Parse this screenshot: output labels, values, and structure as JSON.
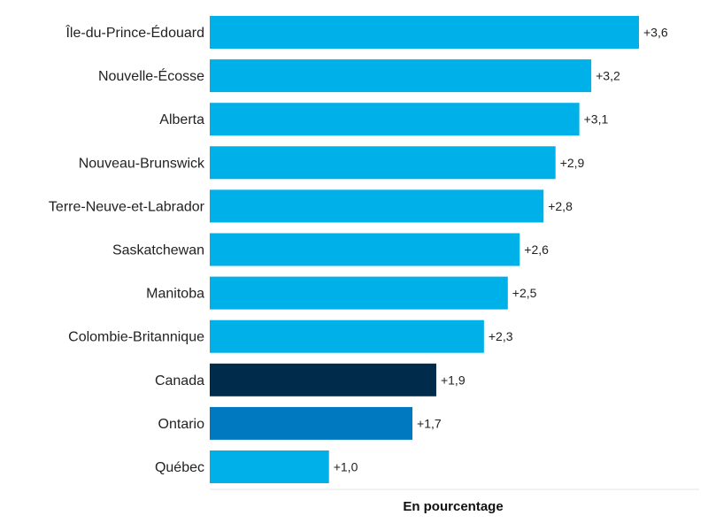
{
  "chart_data": {
    "type": "bar",
    "orientation": "horizontal",
    "categories": [
      "Île-du-Prince-Édouard",
      "Nouvelle-Écosse",
      "Alberta",
      "Nouveau-Brunswick",
      "Terre-Neuve-et-Labrador",
      "Saskatchewan",
      "Manitoba",
      "Colombie-Britannique",
      "Canada",
      "Ontario",
      "Québec"
    ],
    "values": [
      3.6,
      3.2,
      3.1,
      2.9,
      2.8,
      2.6,
      2.5,
      2.3,
      1.9,
      1.7,
      1.0
    ],
    "value_labels": [
      "+3,6",
      "+3,2",
      "+3,1",
      "+2,9",
      "+2,8",
      "+2,6",
      "+2,5",
      "+2,3",
      "+1,9",
      "+1,7",
      "+1,0"
    ],
    "colors": [
      "#00b0e8",
      "#00b0e8",
      "#00b0e8",
      "#00b0e8",
      "#00b0e8",
      "#00b0e8",
      "#00b0e8",
      "#00b0e8",
      "#002b4a",
      "#0079c1",
      "#00b0e8"
    ],
    "xlabel": "En pourcentage",
    "ylabel": "",
    "xlim": [
      0,
      3.6
    ],
    "grid": false
  }
}
